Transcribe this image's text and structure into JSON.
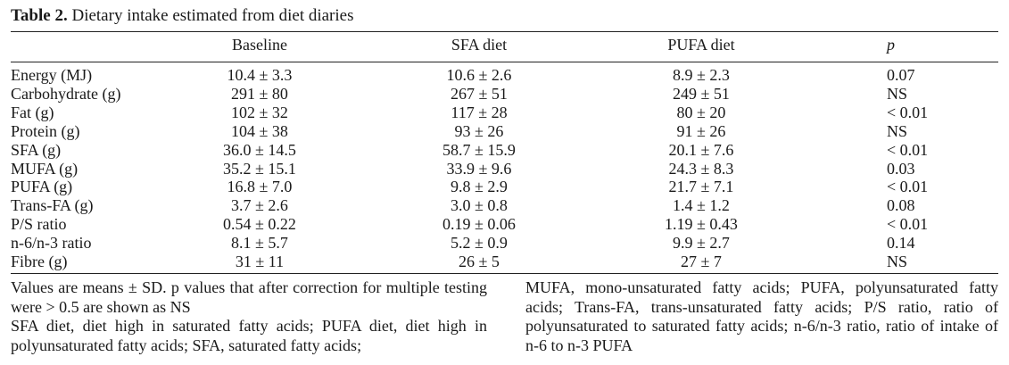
{
  "caption": {
    "label": "Table 2.",
    "title": "Dietary intake estimated from diet diaries"
  },
  "columns": [
    "",
    "Baseline",
    "SFA diet",
    "PUFA diet",
    "p"
  ],
  "rows": [
    [
      "Energy (MJ)",
      "10.4 ± 3.3",
      "10.6 ± 2.6",
      "8.9 ± 2.3",
      "0.07"
    ],
    [
      "Carbohydrate (g)",
      "291 ± 80",
      "267 ± 51",
      "249 ± 51",
      "NS"
    ],
    [
      "Fat (g)",
      "102 ± 32",
      "117 ± 28",
      "80 ± 20",
      "< 0.01"
    ],
    [
      "Protein (g)",
      "104 ± 38",
      "93 ± 26",
      "91 ± 26",
      "NS"
    ],
    [
      "SFA (g)",
      "36.0 ± 14.5",
      "58.7 ± 15.9",
      "20.1 ± 7.6",
      "< 0.01"
    ],
    [
      "MUFA (g)",
      "35.2 ± 15.1",
      "33.9 ± 9.6",
      "24.3 ± 8.3",
      "0.03"
    ],
    [
      "PUFA (g)",
      "16.8 ± 7.0",
      "9.8 ± 2.9",
      "21.7 ± 7.1",
      "< 0.01"
    ],
    [
      "Trans-FA (g)",
      "3.7 ± 2.6",
      "3.0 ± 0.8",
      "1.4 ± 1.2",
      "0.08"
    ],
    [
      "P/S ratio",
      "0.54 ± 0.22",
      "0.19 ± 0.06",
      "1.19 ± 0.43",
      "< 0.01"
    ],
    [
      "n-6/n-3 ratio",
      "8.1 ± 5.7",
      "5.2 ± 0.9",
      "9.9 ± 2.7",
      "0.14"
    ],
    [
      "Fibre (g)",
      "31 ± 11",
      "26 ± 5",
      "27 ± 7",
      "NS"
    ]
  ],
  "footnotes": {
    "left_1": "Values are means ± SD. p values that after correction for multiple testing were > 0.5 are shown as NS",
    "left_2": "SFA diet, diet high in saturated fatty acids; PUFA diet, diet high in polyunsaturated fatty acids; SFA, saturated fatty acids;",
    "right": "MUFA, mono-unsaturated fatty acids; PUFA, polyunsaturated fatty acids; Trans-FA, trans-unsaturated fatty acids; P/S ratio, ratio of polyunsaturated to saturated fatty acids; n-6/n-3 ratio, ratio of intake of n-6 to n-3 PUFA"
  }
}
